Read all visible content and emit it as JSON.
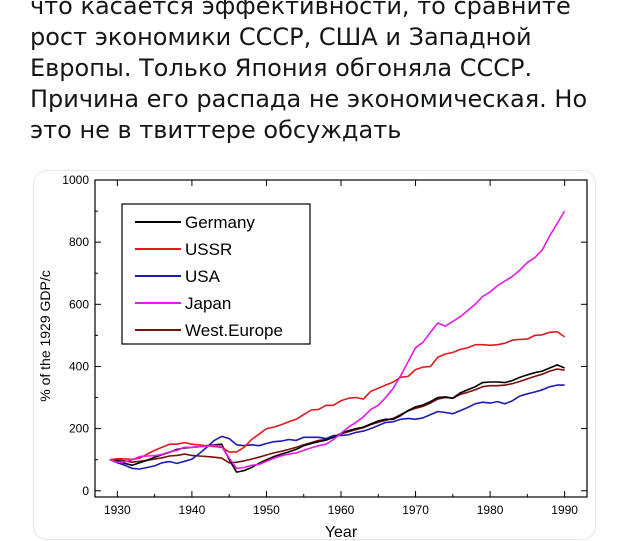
{
  "tweet": {
    "lines": [
      "что касается эффективности, то сравните",
      "рост экономики СССР, США и Западной",
      "Европы. Только Япония обгоняла СССР.",
      "Причина его распада не экономическая. Но",
      "это не в твиттере обсуждать"
    ]
  },
  "chart_data": {
    "type": "line",
    "xlabel": "Year",
    "ylabel": "% of the 1929 GDP/c",
    "xlim": [
      1927,
      1993
    ],
    "ylim": [
      -20,
      1000
    ],
    "xticks": [
      1930,
      1940,
      1950,
      1960,
      1970,
      1980,
      1990
    ],
    "yticks": [
      0,
      200,
      400,
      600,
      800,
      1000
    ],
    "legend_position": "top-left",
    "series": [
      {
        "name": "Germany",
        "color": "#000000",
        "points": [
          [
            1929,
            100
          ],
          [
            1930,
            96
          ],
          [
            1931,
            88
          ],
          [
            1932,
            82
          ],
          [
            1933,
            90
          ],
          [
            1934,
            98
          ],
          [
            1935,
            108
          ],
          [
            1936,
            116
          ],
          [
            1937,
            124
          ],
          [
            1938,
            133
          ],
          [
            1939,
            138
          ],
          [
            1940,
            140
          ],
          [
            1941,
            142
          ],
          [
            1942,
            145
          ],
          [
            1943,
            148
          ],
          [
            1944,
            150
          ],
          [
            1945,
            100
          ],
          [
            1946,
            60
          ],
          [
            1947,
            65
          ],
          [
            1948,
            75
          ],
          [
            1949,
            88
          ],
          [
            1950,
            100
          ],
          [
            1951,
            110
          ],
          [
            1952,
            118
          ],
          [
            1953,
            125
          ],
          [
            1954,
            133
          ],
          [
            1955,
            145
          ],
          [
            1956,
            152
          ],
          [
            1957,
            158
          ],
          [
            1958,
            163
          ],
          [
            1959,
            172
          ],
          [
            1960,
            185
          ],
          [
            1961,
            193
          ],
          [
            1962,
            200
          ],
          [
            1963,
            205
          ],
          [
            1964,
            215
          ],
          [
            1965,
            225
          ],
          [
            1966,
            230
          ],
          [
            1967,
            230
          ],
          [
            1968,
            242
          ],
          [
            1969,
            258
          ],
          [
            1970,
            270
          ],
          [
            1971,
            276
          ],
          [
            1972,
            287
          ],
          [
            1973,
            300
          ],
          [
            1974,
            302
          ],
          [
            1975,
            298
          ],
          [
            1976,
            315
          ],
          [
            1977,
            325
          ],
          [
            1978,
            335
          ],
          [
            1979,
            348
          ],
          [
            1980,
            350
          ],
          [
            1981,
            350
          ],
          [
            1982,
            348
          ],
          [
            1983,
            355
          ],
          [
            1984,
            365
          ],
          [
            1985,
            373
          ],
          [
            1986,
            380
          ],
          [
            1987,
            385
          ],
          [
            1988,
            395
          ],
          [
            1989,
            405
          ],
          [
            1990,
            395
          ]
        ]
      },
      {
        "name": "USSR",
        "color": "#e41a1c",
        "points": [
          [
            1929,
            100
          ],
          [
            1930,
            103
          ],
          [
            1931,
            103
          ],
          [
            1932,
            101
          ],
          [
            1933,
            105
          ],
          [
            1934,
            118
          ],
          [
            1935,
            130
          ],
          [
            1936,
            140
          ],
          [
            1937,
            150
          ],
          [
            1938,
            150
          ],
          [
            1939,
            155
          ],
          [
            1940,
            150
          ],
          [
            1944,
            140
          ],
          [
            1945,
            125
          ],
          [
            1946,
            125
          ],
          [
            1947,
            140
          ],
          [
            1948,
            165
          ],
          [
            1949,
            182
          ],
          [
            1950,
            200
          ],
          [
            1951,
            205
          ],
          [
            1952,
            213
          ],
          [
            1953,
            222
          ],
          [
            1954,
            230
          ],
          [
            1955,
            245
          ],
          [
            1956,
            260
          ],
          [
            1957,
            262
          ],
          [
            1958,
            275
          ],
          [
            1959,
            275
          ],
          [
            1960,
            290
          ],
          [
            1961,
            298
          ],
          [
            1962,
            300
          ],
          [
            1963,
            295
          ],
          [
            1964,
            320
          ],
          [
            1965,
            330
          ],
          [
            1966,
            340
          ],
          [
            1967,
            350
          ],
          [
            1968,
            365
          ],
          [
            1969,
            368
          ],
          [
            1970,
            390
          ],
          [
            1971,
            398
          ],
          [
            1972,
            400
          ],
          [
            1973,
            430
          ],
          [
            1974,
            440
          ],
          [
            1975,
            445
          ],
          [
            1976,
            455
          ],
          [
            1977,
            460
          ],
          [
            1978,
            470
          ],
          [
            1979,
            470
          ],
          [
            1980,
            468
          ],
          [
            1981,
            470
          ],
          [
            1982,
            475
          ],
          [
            1983,
            485
          ],
          [
            1984,
            487
          ],
          [
            1985,
            488
          ],
          [
            1986,
            500
          ],
          [
            1987,
            502
          ],
          [
            1988,
            510
          ],
          [
            1989,
            512
          ],
          [
            1990,
            495
          ]
        ]
      },
      {
        "name": "USA",
        "color": "#1c1cb4",
        "points": [
          [
            1929,
            100
          ],
          [
            1930,
            90
          ],
          [
            1931,
            82
          ],
          [
            1932,
            72
          ],
          [
            1933,
            70
          ],
          [
            1934,
            75
          ],
          [
            1935,
            80
          ],
          [
            1936,
            90
          ],
          [
            1937,
            94
          ],
          [
            1938,
            88
          ],
          [
            1939,
            95
          ],
          [
            1940,
            102
          ],
          [
            1941,
            120
          ],
          [
            1942,
            140
          ],
          [
            1943,
            162
          ],
          [
            1944,
            175
          ],
          [
            1945,
            168
          ],
          [
            1946,
            148
          ],
          [
            1947,
            145
          ],
          [
            1948,
            148
          ],
          [
            1949,
            145
          ],
          [
            1950,
            152
          ],
          [
            1951,
            158
          ],
          [
            1952,
            160
          ],
          [
            1953,
            165
          ],
          [
            1954,
            162
          ],
          [
            1955,
            172
          ],
          [
            1956,
            172
          ],
          [
            1957,
            172
          ],
          [
            1958,
            168
          ],
          [
            1959,
            178
          ],
          [
            1960,
            178
          ],
          [
            1961,
            180
          ],
          [
            1962,
            188
          ],
          [
            1963,
            192
          ],
          [
            1964,
            200
          ],
          [
            1965,
            210
          ],
          [
            1966,
            220
          ],
          [
            1967,
            222
          ],
          [
            1968,
            230
          ],
          [
            1969,
            233
          ],
          [
            1970,
            230
          ],
          [
            1971,
            235
          ],
          [
            1972,
            245
          ],
          [
            1973,
            255
          ],
          [
            1974,
            252
          ],
          [
            1975,
            248
          ],
          [
            1976,
            258
          ],
          [
            1977,
            268
          ],
          [
            1978,
            280
          ],
          [
            1979,
            285
          ],
          [
            1980,
            282
          ],
          [
            1981,
            287
          ],
          [
            1982,
            280
          ],
          [
            1983,
            290
          ],
          [
            1984,
            305
          ],
          [
            1985,
            312
          ],
          [
            1986,
            318
          ],
          [
            1987,
            325
          ],
          [
            1988,
            335
          ],
          [
            1989,
            340
          ],
          [
            1990,
            340
          ]
        ]
      },
      {
        "name": "Japan",
        "color": "#e619e6",
        "points": [
          [
            1929,
            100
          ],
          [
            1930,
            92
          ],
          [
            1931,
            93
          ],
          [
            1932,
            100
          ],
          [
            1933,
            110
          ],
          [
            1934,
            112
          ],
          [
            1935,
            113
          ],
          [
            1936,
            117
          ],
          [
            1937,
            125
          ],
          [
            1938,
            130
          ],
          [
            1939,
            140
          ],
          [
            1940,
            140
          ],
          [
            1941,
            142
          ],
          [
            1942,
            143
          ],
          [
            1943,
            147
          ],
          [
            1944,
            142
          ],
          [
            1945,
            105
          ],
          [
            1946,
            72
          ],
          [
            1947,
            75
          ],
          [
            1948,
            82
          ],
          [
            1949,
            85
          ],
          [
            1950,
            95
          ],
          [
            1951,
            105
          ],
          [
            1952,
            113
          ],
          [
            1953,
            118
          ],
          [
            1954,
            122
          ],
          [
            1955,
            130
          ],
          [
            1956,
            138
          ],
          [
            1957,
            145
          ],
          [
            1958,
            150
          ],
          [
            1959,
            165
          ],
          [
            1960,
            185
          ],
          [
            1961,
            205
          ],
          [
            1962,
            220
          ],
          [
            1963,
            238
          ],
          [
            1964,
            262
          ],
          [
            1965,
            275
          ],
          [
            1966,
            300
          ],
          [
            1967,
            330
          ],
          [
            1968,
            370
          ],
          [
            1969,
            415
          ],
          [
            1970,
            460
          ],
          [
            1971,
            478
          ],
          [
            1972,
            510
          ],
          [
            1973,
            540
          ],
          [
            1974,
            530
          ],
          [
            1975,
            545
          ],
          [
            1976,
            560
          ],
          [
            1977,
            580
          ],
          [
            1978,
            600
          ],
          [
            1979,
            625
          ],
          [
            1980,
            640
          ],
          [
            1981,
            660
          ],
          [
            1982,
            675
          ],
          [
            1983,
            690
          ],
          [
            1984,
            710
          ],
          [
            1985,
            735
          ],
          [
            1986,
            750
          ],
          [
            1987,
            775
          ],
          [
            1988,
            820
          ],
          [
            1989,
            860
          ],
          [
            1990,
            900
          ]
        ]
      },
      {
        "name": "West.Europe",
        "color": "#7a1010",
        "points": [
          [
            1929,
            100
          ],
          [
            1930,
            100
          ],
          [
            1931,
            96
          ],
          [
            1932,
            92
          ],
          [
            1933,
            95
          ],
          [
            1934,
            98
          ],
          [
            1935,
            102
          ],
          [
            1936,
            106
          ],
          [
            1937,
            112
          ],
          [
            1938,
            114
          ],
          [
            1939,
            118
          ],
          [
            1940,
            114
          ],
          [
            1941,
            112
          ],
          [
            1942,
            110
          ],
          [
            1943,
            108
          ],
          [
            1944,
            105
          ],
          [
            1945,
            90
          ],
          [
            1946,
            92
          ],
          [
            1947,
            96
          ],
          [
            1948,
            102
          ],
          [
            1949,
            108
          ],
          [
            1950,
            115
          ],
          [
            1951,
            122
          ],
          [
            1952,
            127
          ],
          [
            1953,
            133
          ],
          [
            1954,
            140
          ],
          [
            1955,
            148
          ],
          [
            1956,
            155
          ],
          [
            1957,
            162
          ],
          [
            1958,
            165
          ],
          [
            1959,
            172
          ],
          [
            1960,
            183
          ],
          [
            1961,
            190
          ],
          [
            1962,
            197
          ],
          [
            1963,
            203
          ],
          [
            1964,
            213
          ],
          [
            1965,
            220
          ],
          [
            1966,
            227
          ],
          [
            1967,
            233
          ],
          [
            1968,
            245
          ],
          [
            1969,
            257
          ],
          [
            1970,
            265
          ],
          [
            1971,
            272
          ],
          [
            1972,
            282
          ],
          [
            1973,
            295
          ],
          [
            1974,
            300
          ],
          [
            1975,
            298
          ],
          [
            1976,
            310
          ],
          [
            1977,
            317
          ],
          [
            1978,
            325
          ],
          [
            1979,
            335
          ],
          [
            1980,
            338
          ],
          [
            1981,
            338
          ],
          [
            1982,
            340
          ],
          [
            1983,
            345
          ],
          [
            1984,
            352
          ],
          [
            1985,
            360
          ],
          [
            1986,
            368
          ],
          [
            1987,
            375
          ],
          [
            1988,
            385
          ],
          [
            1989,
            392
          ],
          [
            1990,
            388
          ]
        ]
      }
    ]
  }
}
